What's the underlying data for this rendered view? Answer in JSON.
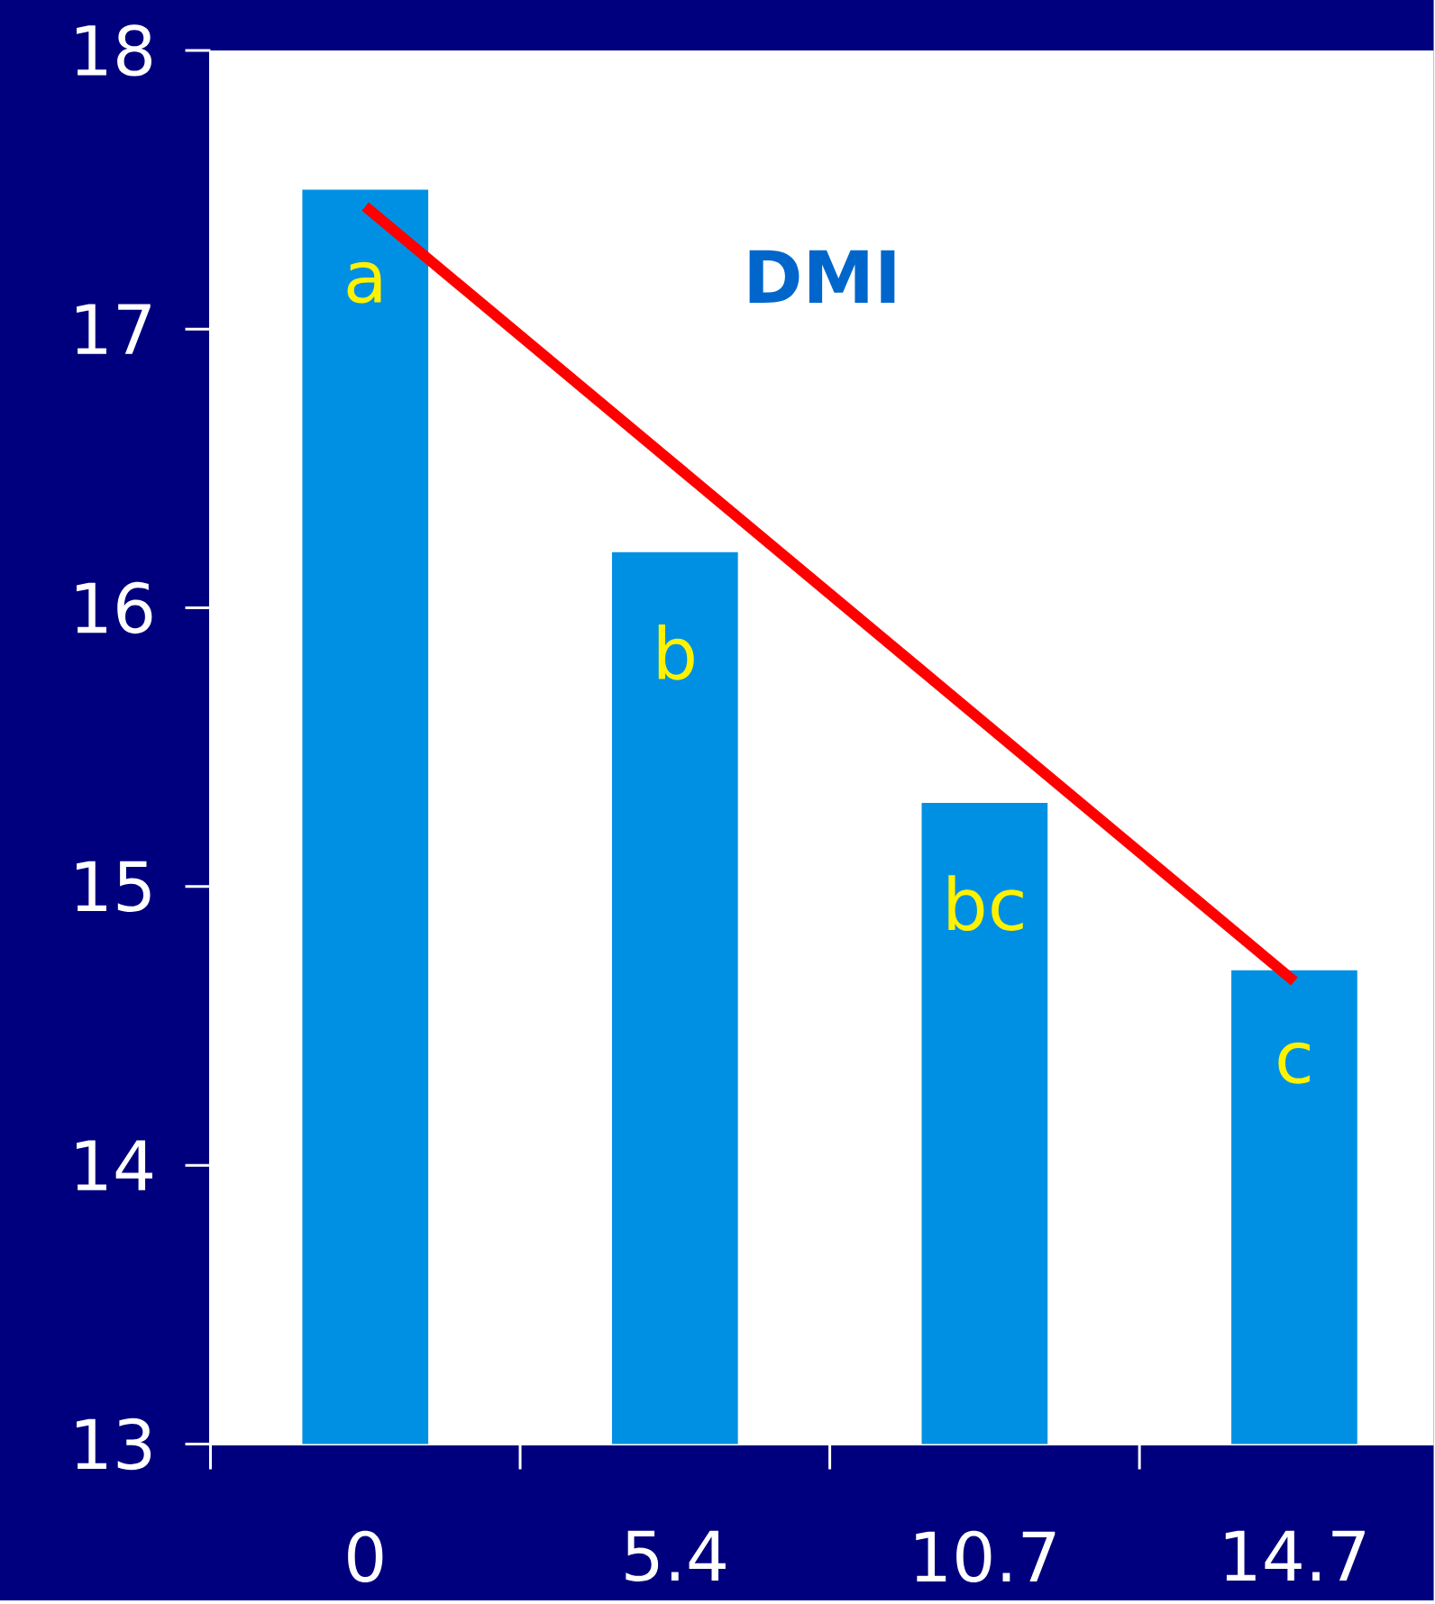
{
  "chart_data": {
    "type": "bar",
    "title": "DMI",
    "categories": [
      "0",
      "5.4",
      "10.7",
      "14.7"
    ],
    "series": [
      {
        "color": "#0090e3",
        "values": [
          17.5,
          16.2,
          15.3,
          14.7
        ]
      },
      {
        "type": "line",
        "color": "#ff0000",
        "x": [
          "0",
          "14.7"
        ],
        "values": [
          17.44,
          14.66
        ],
        "line_style": "solid",
        "marker": "none"
      }
    ],
    "ylim": [
      13,
      18
    ],
    "yticks": [
      13,
      14,
      15,
      16,
      17,
      18
    ],
    "grid": false,
    "annotations": [
      {
        "text": "a",
        "x": "0",
        "y": 17.5
      },
      {
        "text": "b",
        "x": "5.4",
        "y": 16.2
      },
      {
        "text": "bc",
        "x": "10.7",
        "y": 15.3
      },
      {
        "text": "c",
        "x": "14.7",
        "y": 14.7
      }
    ]
  }
}
